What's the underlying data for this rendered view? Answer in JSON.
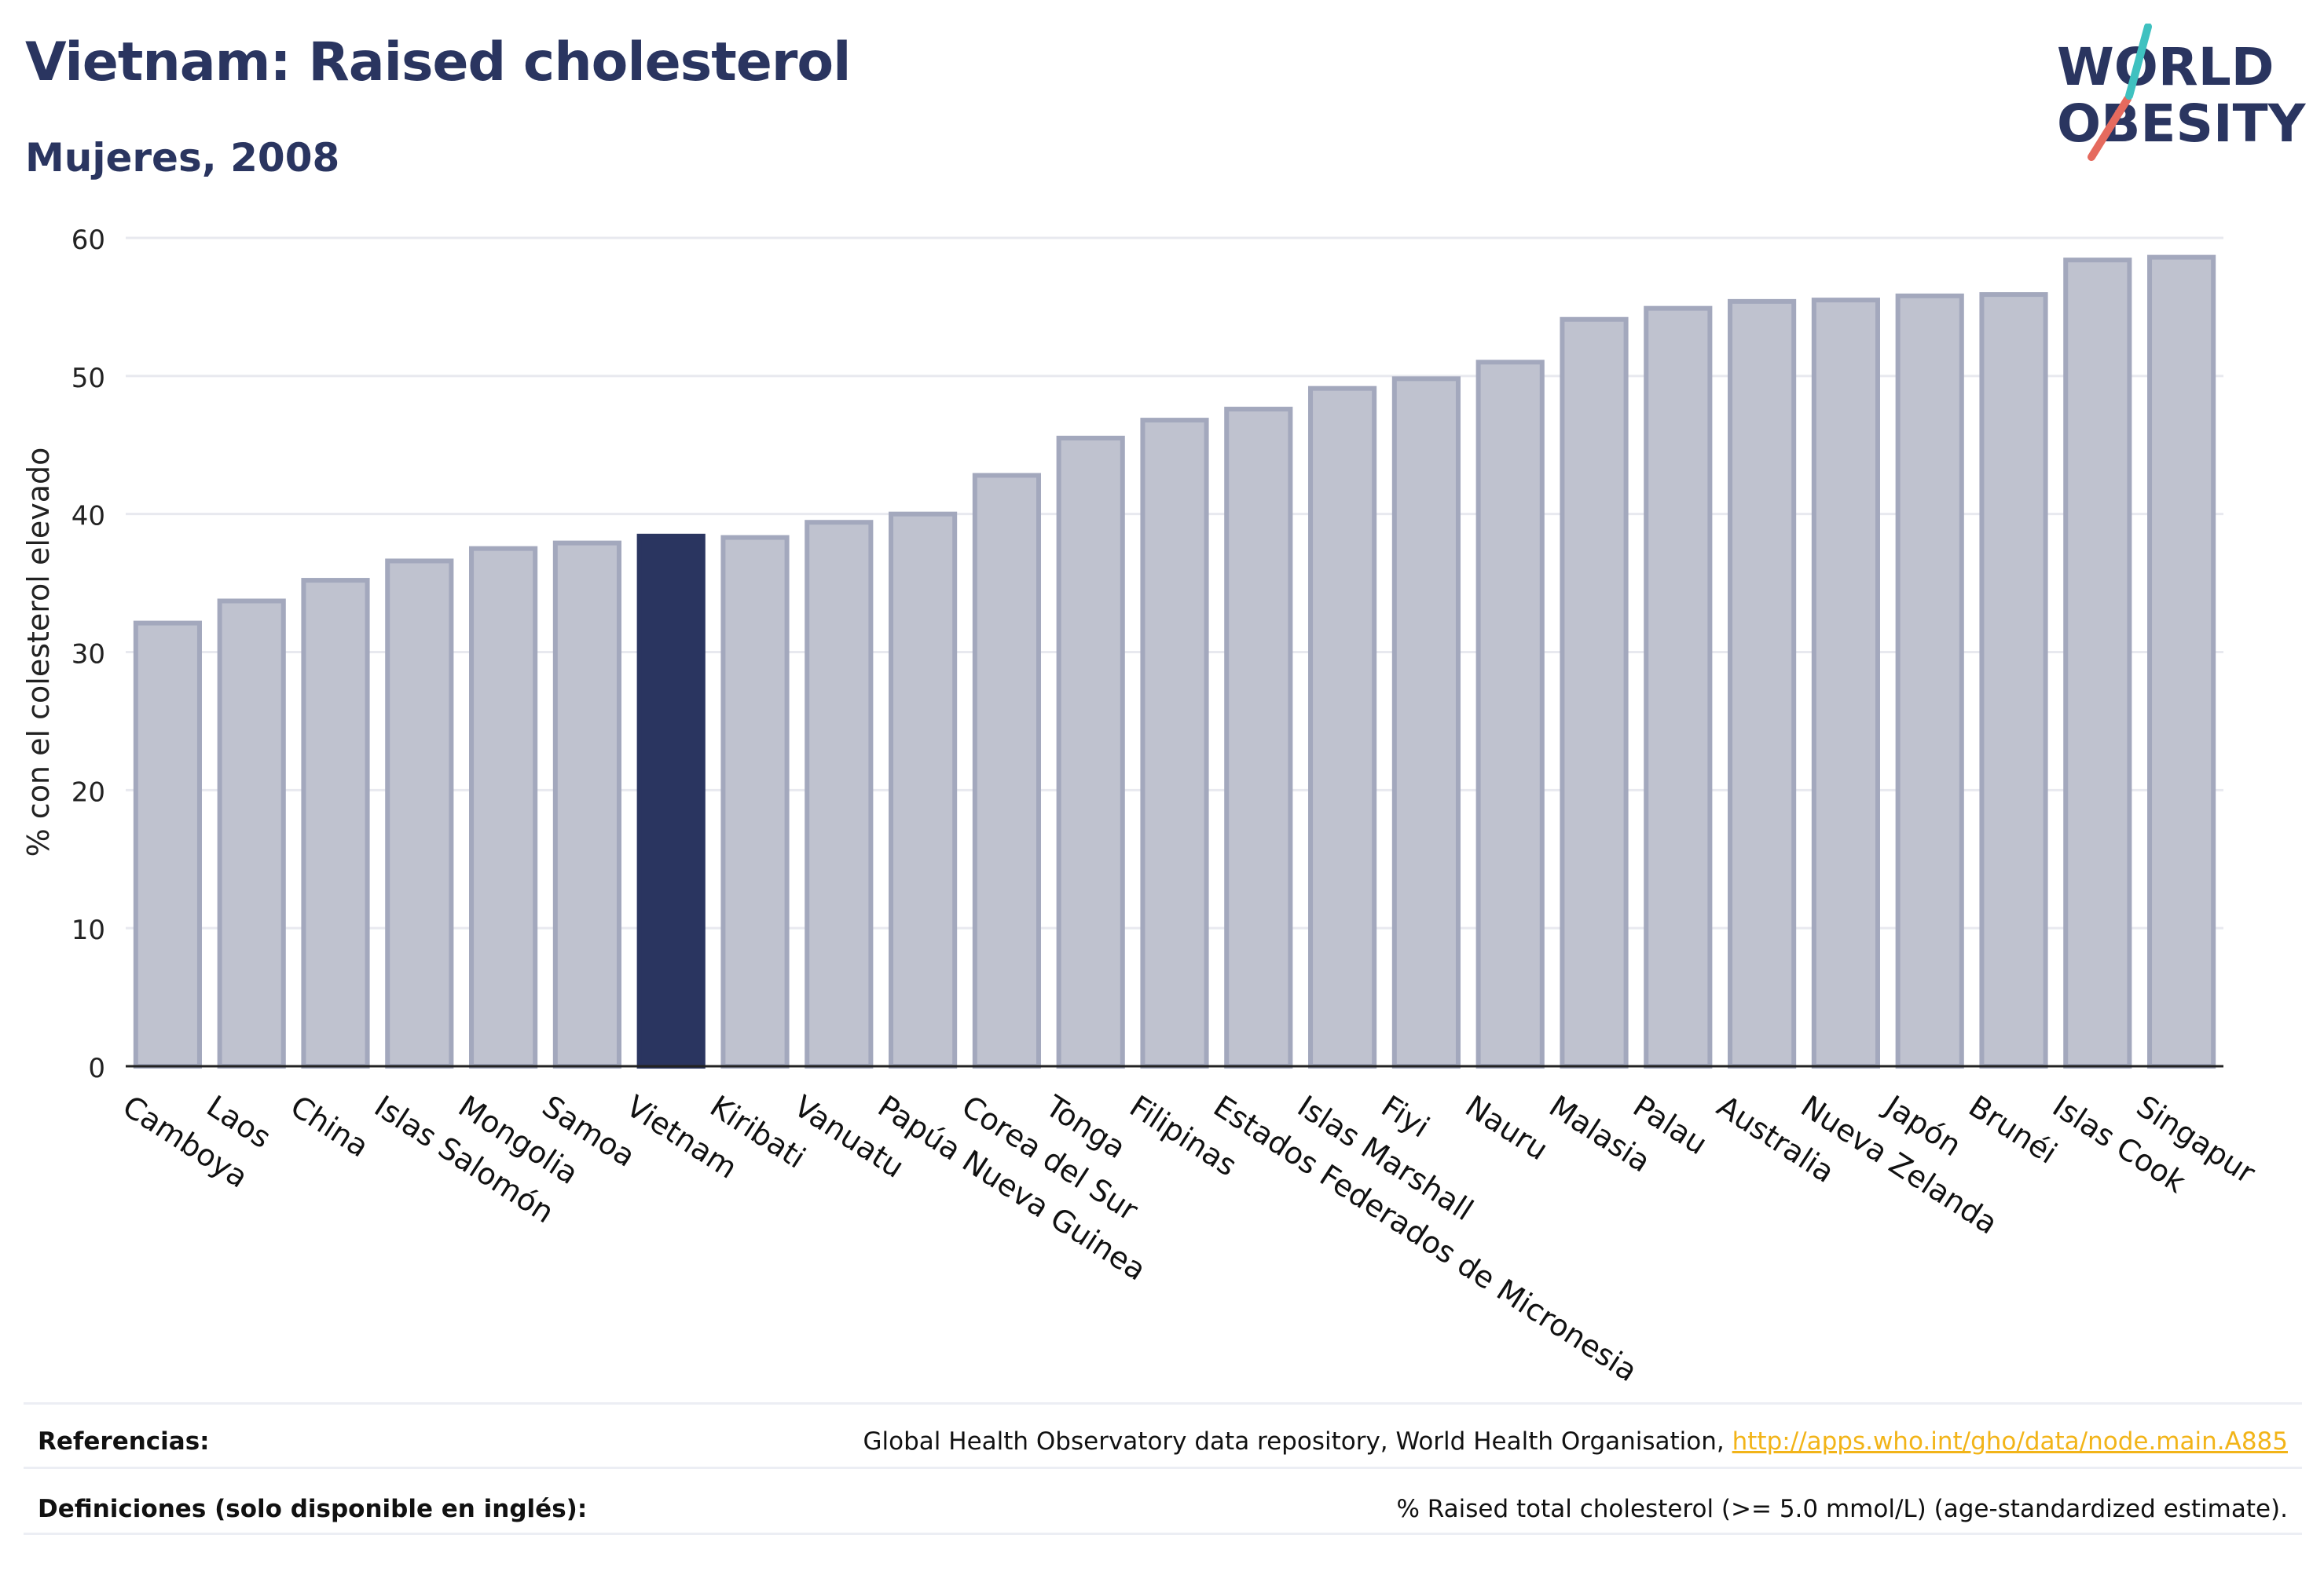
{
  "title": "Vietnam: Raised cholesterol",
  "subtitle": "Mujeres, 2008",
  "logo": {
    "line1": "WORLD",
    "line2": "OBESITY"
  },
  "chart_data": {
    "type": "bar",
    "ylabel": "% con el colesterol elevado",
    "ylim": [
      0,
      60
    ],
    "yticks": [
      0,
      10,
      20,
      30,
      40,
      50,
      60
    ],
    "grid": true,
    "highlight": "Vietnam",
    "colors": {
      "bar": "#bfc2cf",
      "bar_edge": "#a3a8bd",
      "highlight": "#2a3560"
    },
    "categories": [
      "Camboya",
      "Laos",
      "China",
      "Islas Salomón",
      "Mongolia",
      "Samoa",
      "Vietnam",
      "Kiribati",
      "Vanuatu",
      "Papúa Nueva Guinea",
      "Corea del Sur",
      "Tonga",
      "Filipinas",
      "Estados Federados de Micronesia",
      "Islas Marshall",
      "Fiyi",
      "Nauru",
      "Malasia",
      "Palau",
      "Australia",
      "Nueva Zelanda",
      "Japón",
      "Brunéi",
      "Islas Cook",
      "Singapur"
    ],
    "values": [
      32.1,
      33.7,
      35.2,
      36.6,
      37.5,
      37.9,
      38.4,
      38.3,
      39.4,
      40.0,
      42.8,
      45.5,
      46.8,
      47.6,
      49.1,
      49.8,
      51.0,
      54.1,
      54.9,
      55.4,
      55.5,
      55.8,
      55.9,
      58.4,
      58.6
    ]
  },
  "footer": {
    "references_label": "Referencias:",
    "references_text": "Global Health Observatory data repository, World Health Organisation, ",
    "references_link": "http://apps.who.int/gho/data/node.main.A885",
    "definitions_label": "Definiciones (solo disponible en inglés):",
    "definitions_text": "% Raised total cholesterol (>= 5.0 mmol/L) (age-standardized estimate)."
  }
}
